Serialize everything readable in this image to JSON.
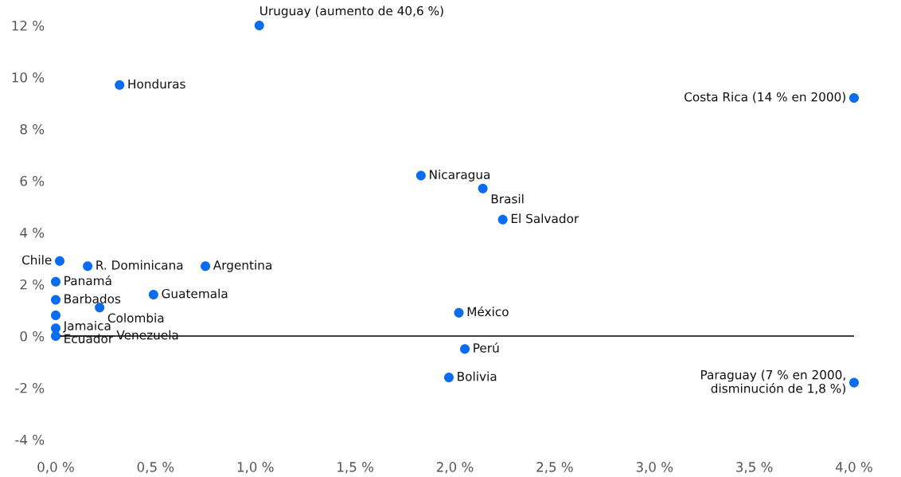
{
  "chart_data": {
    "type": "scatter",
    "x": [
      1.02,
      0.32,
      4.0,
      1.83,
      2.14,
      2.24,
      0.02,
      0.16,
      0.75,
      0.0,
      0.49,
      0.0,
      0.22,
      0.0,
      2.02,
      0.0,
      0.0,
      2.05,
      1.97,
      4.0
    ],
    "series": [
      {
        "color": "#0a6cf0",
        "values": [
          12.0,
          9.7,
          9.2,
          6.2,
          5.7,
          4.5,
          2.9,
          2.7,
          2.7,
          2.1,
          1.6,
          1.4,
          1.1,
          0.8,
          0.9,
          0.3,
          0.0,
          -0.5,
          -1.6,
          -1.8
        ]
      }
    ],
    "annotations": [
      {
        "text": "Uruguay (aumento de 40,6 %)",
        "x": 1.02,
        "y": 12.0
      },
      {
        "text": "Honduras",
        "x": 0.32,
        "y": 9.7
      },
      {
        "text": "Costa Rica (14 % en 2000)",
        "x": 4.0,
        "y": 9.2
      },
      {
        "text": "Nicaragua",
        "x": 1.83,
        "y": 6.2
      },
      {
        "text": "Brasil",
        "x": 2.14,
        "y": 5.7
      },
      {
        "text": "El Salvador",
        "x": 2.24,
        "y": 4.5
      },
      {
        "text": "Chile",
        "x": 0.02,
        "y": 2.9
      },
      {
        "text": "R. Dominicana",
        "x": 0.16,
        "y": 2.7
      },
      {
        "text": "Argentina",
        "x": 0.75,
        "y": 2.7
      },
      {
        "text": "Panamá",
        "x": 0.0,
        "y": 2.1
      },
      {
        "text": "Guatemala",
        "x": 0.49,
        "y": 1.6
      },
      {
        "text": "Barbados",
        "x": 0.0,
        "y": 1.4
      },
      {
        "text": "Colombia",
        "x": 0.22,
        "y": 1.1
      },
      {
        "text": "Jamaica",
        "x": 0.0,
        "y": 0.8
      },
      {
        "text": "México",
        "x": 2.02,
        "y": 0.9
      },
      {
        "text": "Ecuador",
        "x": 0.0,
        "y": 0.3
      },
      {
        "text": "Venezuela",
        "x": 0.0,
        "y": 0.0
      },
      {
        "text": "Perú",
        "x": 2.05,
        "y": -0.5
      },
      {
        "text": "Bolivia",
        "x": 1.97,
        "y": -1.6
      },
      {
        "text": "Paraguay (7 % en 2000,\ndisminución de 1,8 %)",
        "x": 4.0,
        "y": -1.8
      }
    ],
    "ref_lines": [
      {
        "axis": "y",
        "value": 0,
        "color": "#000000"
      }
    ],
    "xlim": [
      0,
      4.0
    ],
    "ylim": [
      -4,
      12
    ],
    "xticks": [
      {
        "value": 0,
        "label": "0,0 %"
      },
      {
        "value": 0.5,
        "label": "0,5 %"
      },
      {
        "value": 1.0,
        "label": "1,0 %"
      },
      {
        "value": 1.5,
        "label": "1,5 %"
      },
      {
        "value": 2.0,
        "label": "2,0 %"
      },
      {
        "value": 2.5,
        "label": "2,5 %"
      },
      {
        "value": 3.0,
        "label": "3,0 %"
      },
      {
        "value": 3.5,
        "label": "3,5 %"
      },
      {
        "value": 4.0,
        "label": "4,0 %"
      }
    ],
    "yticks": [
      {
        "value": -4,
        "label": "-4 %"
      },
      {
        "value": -2,
        "label": "-2 %"
      },
      {
        "value": 0,
        "label": "0 %"
      },
      {
        "value": 2,
        "label": "2 %"
      },
      {
        "value": 4,
        "label": "4 %"
      },
      {
        "value": 6,
        "label": "6 %"
      },
      {
        "value": 8,
        "label": "8 %"
      },
      {
        "value": 10,
        "label": "10 %"
      },
      {
        "value": 12,
        "label": "12 %"
      }
    ],
    "grid": false,
    "legend": false
  }
}
